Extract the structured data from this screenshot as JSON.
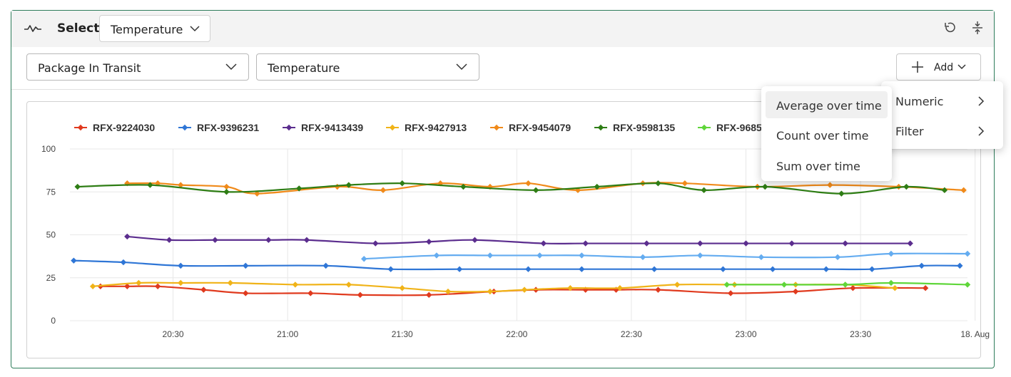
{
  "toolbar": {
    "select_label": "Select",
    "metric": "Temperature",
    "icons": [
      "pulse-icon",
      "chevron-down-icon",
      "undo-icon",
      "collapse-icon"
    ]
  },
  "filters": {
    "entity": "Package In Transit",
    "property": "Temperature",
    "add_label": "Add"
  },
  "add_menu": {
    "items": [
      "Numeric",
      "Filter"
    ]
  },
  "sub_menu": {
    "items": [
      "Average over time",
      "Count over time",
      "Sum over time"
    ],
    "highlighted": "Average over time"
  },
  "chart_data": {
    "type": "line",
    "y_ticks": [
      "0",
      "25",
      "50",
      "75",
      "100"
    ],
    "ylim": [
      0,
      100
    ],
    "x_ticks": [
      "20:30",
      "21:00",
      "21:30",
      "22:00",
      "22:30",
      "23:00",
      "23:30",
      "18. Aug"
    ],
    "xlim": [
      "20:03",
      "23:58"
    ],
    "legend_position": "top",
    "series": [
      {
        "name": "RFX-9224030",
        "color": "#e03a1e",
        "x": [
          "20:11",
          "20:18",
          "20:26",
          "20:38",
          "20:49",
          "21:06",
          "21:19",
          "21:37",
          "21:54",
          "22:05",
          "22:18",
          "22:26",
          "22:37",
          "22:56",
          "23:13",
          "23:28",
          "23:47"
        ],
        "y": [
          20,
          20,
          20,
          18,
          16,
          16,
          15,
          15,
          17,
          18,
          18,
          18,
          18,
          16,
          17,
          19,
          19
        ]
      },
      {
        "name": "RFX-9396231",
        "color": "#2f76d6",
        "x": [
          "20:04",
          "20:17",
          "20:32",
          "20:49",
          "21:10",
          "21:27",
          "21:45",
          "22:03",
          "22:17",
          "22:36",
          "22:54",
          "23:07",
          "23:21",
          "23:33",
          "23:46",
          "23:56"
        ],
        "y": [
          35,
          34,
          32,
          32,
          32,
          30,
          30,
          30,
          30,
          30,
          30,
          30,
          30,
          30,
          32,
          32
        ]
      },
      {
        "name": "RFX-9413439",
        "color": "#5b2d8e",
        "x": [
          "20:18",
          "20:29",
          "20:41",
          "20:55",
          "21:05",
          "21:23",
          "21:37",
          "21:49",
          "22:07",
          "22:18",
          "22:34",
          "22:48",
          "23:00",
          "23:12",
          "23:26",
          "23:43"
        ],
        "y": [
          49,
          47,
          47,
          47,
          47,
          45,
          46,
          47,
          45,
          45,
          45,
          45,
          45,
          45,
          45,
          45
        ]
      },
      {
        "name": "RFX-9427913",
        "color": "#f0b318",
        "x": [
          "20:09",
          "20:21",
          "20:32",
          "20:45",
          "21:02",
          "21:16",
          "21:30",
          "21:42",
          "21:53",
          "22:02",
          "22:14",
          "22:27",
          "22:42",
          "22:57",
          "23:13",
          "23:26",
          "23:39"
        ],
        "y": [
          20,
          22,
          22,
          22,
          21,
          21,
          19,
          17,
          17,
          18,
          19,
          19,
          21,
          21,
          21,
          21,
          19
        ]
      },
      {
        "name": "RFX-9454079",
        "color": "#f08a1a",
        "x": [
          "20:18",
          "20:26",
          "20:32",
          "20:44",
          "20:52",
          "21:13",
          "21:25",
          "21:40",
          "21:53",
          "22:03",
          "22:16",
          "22:33",
          "22:44",
          "23:03",
          "23:22",
          "23:40",
          "23:57"
        ],
        "y": [
          80,
          80,
          79,
          78,
          74,
          78,
          76,
          80,
          78,
          80,
          76,
          80,
          80,
          78,
          79,
          78,
          76
        ]
      },
      {
        "name": "RFX-9598135",
        "color": "#2e7d14",
        "x": [
          "20:05",
          "20:24",
          "20:44",
          "21:03",
          "21:16",
          "21:30",
          "21:46",
          "22:05",
          "22:21",
          "22:37",
          "22:49",
          "23:05",
          "23:25",
          "23:42",
          "23:52"
        ],
        "y": [
          78,
          79,
          75,
          77,
          79,
          80,
          78,
          76,
          78,
          80,
          76,
          78,
          74,
          78,
          76
        ]
      },
      {
        "name": "RFX-9685",
        "color": "#5fd63a",
        "x": [
          "22:55",
          "23:10",
          "23:26",
          "23:38",
          "23:58"
        ],
        "y": [
          21,
          21,
          21,
          22,
          21
        ]
      },
      {
        "name": "",
        "color": "#64acf0",
        "x": [
          "21:20",
          "21:39",
          "21:53",
          "22:06",
          "22:17",
          "22:33",
          "22:48",
          "23:04",
          "23:24",
          "23:38",
          "23:58"
        ],
        "y": [
          36,
          38,
          38,
          38,
          38,
          37,
          38,
          37,
          37,
          39,
          39
        ]
      }
    ]
  }
}
